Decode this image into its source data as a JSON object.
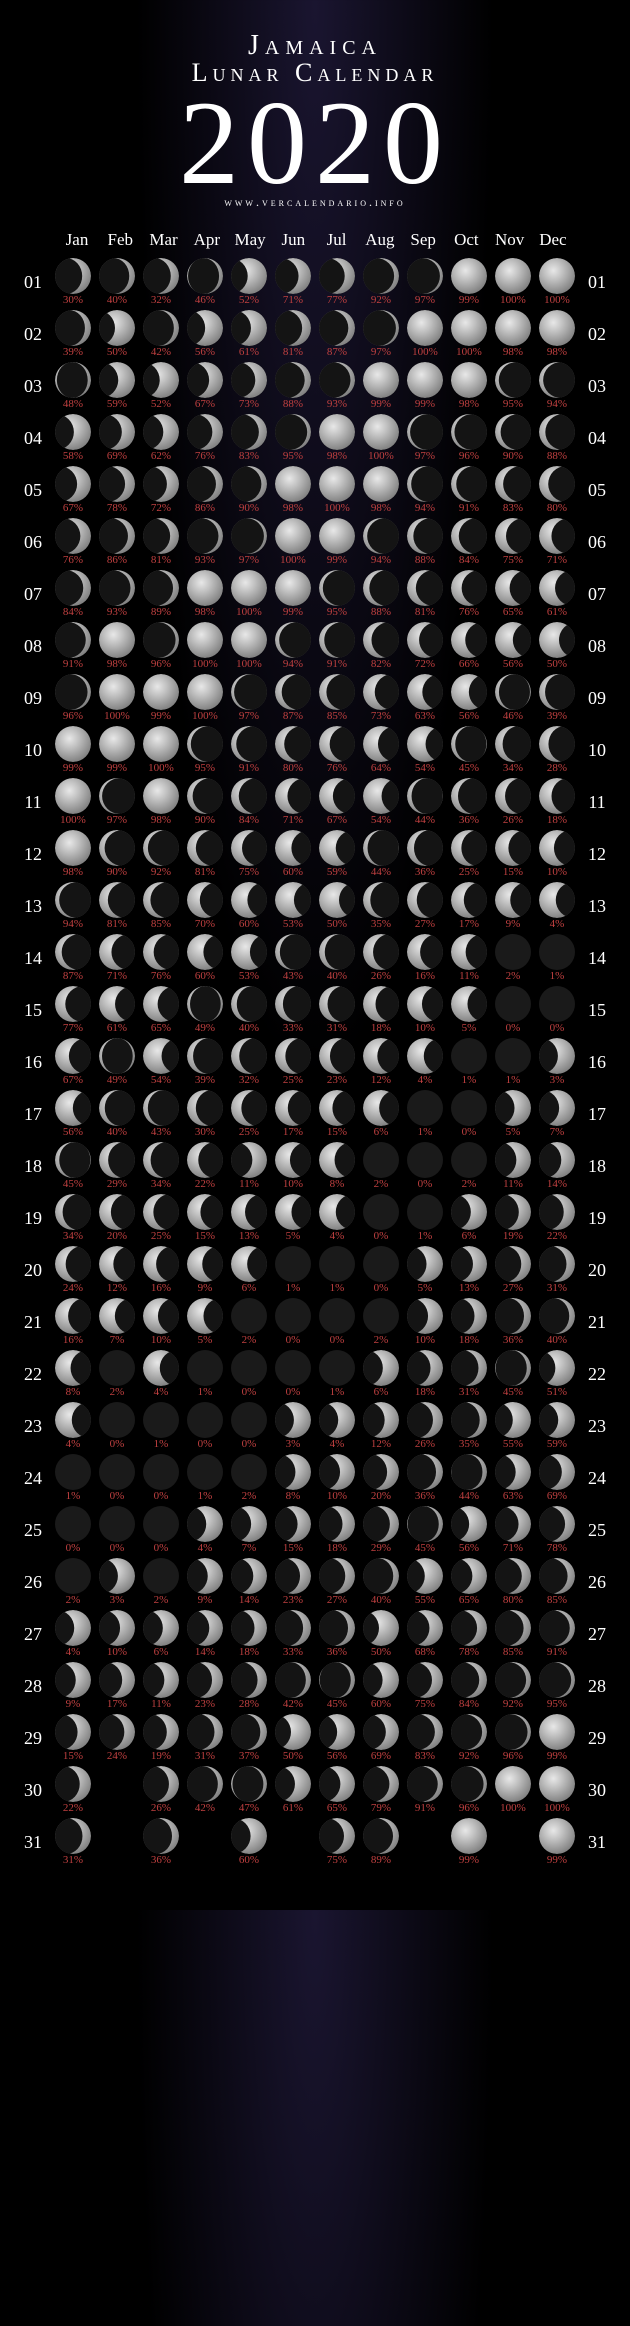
{
  "header": {
    "location": "Jamaica",
    "subtitle": "Lunar Calendar",
    "year": "2020",
    "website": "www.vercalendario.info"
  },
  "months": [
    "Jan",
    "Feb",
    "Mar",
    "Apr",
    "May",
    "Jun",
    "Jul",
    "Aug",
    "Sep",
    "Oct",
    "Nov",
    "Dec"
  ],
  "days": [
    "01",
    "02",
    "03",
    "04",
    "05",
    "06",
    "07",
    "08",
    "09",
    "10",
    "11",
    "12",
    "13",
    "14",
    "15",
    "16",
    "17",
    "18",
    "19",
    "20",
    "21",
    "22",
    "23",
    "24",
    "25",
    "26",
    "27",
    "28",
    "29",
    "30",
    "31"
  ],
  "illumination": {
    "1": [
      30,
      40,
      32,
      46,
      52,
      71,
      77,
      92,
      97,
      99,
      100,
      100
    ],
    "2": [
      39,
      50,
      42,
      56,
      61,
      81,
      87,
      97,
      100,
      100,
      98,
      98
    ],
    "3": [
      48,
      59,
      52,
      67,
      73,
      88,
      93,
      99,
      99,
      98,
      95,
      94
    ],
    "4": [
      58,
      69,
      62,
      76,
      83,
      95,
      98,
      100,
      97,
      96,
      90,
      88
    ],
    "5": [
      67,
      78,
      72,
      86,
      90,
      98,
      100,
      98,
      94,
      91,
      83,
      80
    ],
    "6": [
      76,
      86,
      81,
      93,
      97,
      100,
      99,
      94,
      88,
      84,
      75,
      71
    ],
    "7": [
      84,
      93,
      89,
      98,
      100,
      99,
      95,
      88,
      81,
      76,
      65,
      61
    ],
    "8": [
      91,
      98,
      96,
      100,
      100,
      94,
      91,
      82,
      72,
      66,
      56,
      50
    ],
    "9": [
      96,
      100,
      99,
      100,
      97,
      87,
      85,
      73,
      63,
      56,
      46,
      39
    ],
    "10": [
      99,
      99,
      100,
      95,
      91,
      80,
      76,
      64,
      54,
      45,
      34,
      28
    ],
    "11": [
      100,
      97,
      98,
      90,
      84,
      71,
      67,
      54,
      44,
      36,
      26,
      18
    ],
    "12": [
      98,
      90,
      92,
      81,
      75,
      60,
      59,
      44,
      36,
      25,
      15,
      10
    ],
    "13": [
      94,
      81,
      85,
      70,
      60,
      53,
      50,
      35,
      27,
      17,
      9,
      4
    ],
    "14": [
      87,
      71,
      76,
      60,
      53,
      43,
      40,
      26,
      16,
      11,
      2,
      1
    ],
    "15": [
      77,
      61,
      65,
      49,
      40,
      33,
      31,
      18,
      10,
      5,
      0,
      0
    ],
    "16": [
      67,
      49,
      54,
      39,
      32,
      25,
      23,
      12,
      4,
      1,
      1,
      3
    ],
    "17": [
      56,
      40,
      43,
      30,
      25,
      17,
      15,
      6,
      1,
      0,
      5,
      7
    ],
    "18": [
      45,
      29,
      34,
      22,
      11,
      10,
      8,
      2,
      0,
      2,
      11,
      14
    ],
    "19": [
      34,
      20,
      25,
      15,
      13,
      5,
      4,
      0,
      1,
      6,
      19,
      22
    ],
    "20": [
      24,
      12,
      16,
      9,
      6,
      1,
      1,
      0,
      5,
      13,
      27,
      31
    ],
    "21": [
      16,
      7,
      10,
      5,
      2,
      0,
      0,
      2,
      10,
      18,
      36,
      40
    ],
    "22": [
      8,
      2,
      4,
      1,
      0,
      0,
      1,
      6,
      18,
      31,
      45,
      51
    ],
    "23": [
      4,
      0,
      1,
      0,
      0,
      3,
      4,
      12,
      26,
      35,
      55,
      59
    ],
    "24": [
      1,
      0,
      0,
      1,
      2,
      8,
      10,
      20,
      36,
      44,
      63,
      69
    ],
    "25": [
      0,
      0,
      0,
      4,
      7,
      15,
      18,
      29,
      45,
      56,
      71,
      78
    ],
    "26": [
      2,
      3,
      2,
      9,
      14,
      23,
      27,
      40,
      55,
      65,
      80,
      85
    ],
    "27": [
      4,
      10,
      6,
      14,
      18,
      33,
      36,
      50,
      68,
      78,
      85,
      91
    ],
    "28": [
      9,
      17,
      11,
      23,
      28,
      42,
      45,
      60,
      75,
      84,
      92,
      95
    ],
    "29": [
      15,
      24,
      19,
      31,
      37,
      50,
      56,
      69,
      83,
      92,
      96,
      99
    ],
    "30": [
      22,
      null,
      26,
      42,
      47,
      61,
      65,
      79,
      91,
      96,
      100,
      100
    ],
    "31": [
      31,
      null,
      36,
      null,
      60,
      null,
      75,
      89,
      null,
      99,
      null,
      99
    ]
  },
  "phase_direction": {
    "1": 1,
    "2": 1,
    "3": 1,
    "4": 1,
    "5": 1,
    "6": 1,
    "7": 1,
    "8": 1,
    "9": 1,
    "10": 1,
    "11": -1,
    "12": -1,
    "13": -1,
    "14": -1,
    "15": -1,
    "16": -1,
    "17": -1,
    "18": -1,
    "19": -1,
    "20": -1,
    "21": -1,
    "22": -1,
    "23": -1,
    "24": 1,
    "25": 1,
    "26": 1,
    "27": 1,
    "28": 1,
    "29": 1,
    "30": 1,
    "31": 1
  },
  "colors": {
    "text": "#ffffff",
    "percentage": "#c04040",
    "moon_dark": "#1a1a1a",
    "moon_light": "#c0c0c0",
    "background": "#000000"
  }
}
